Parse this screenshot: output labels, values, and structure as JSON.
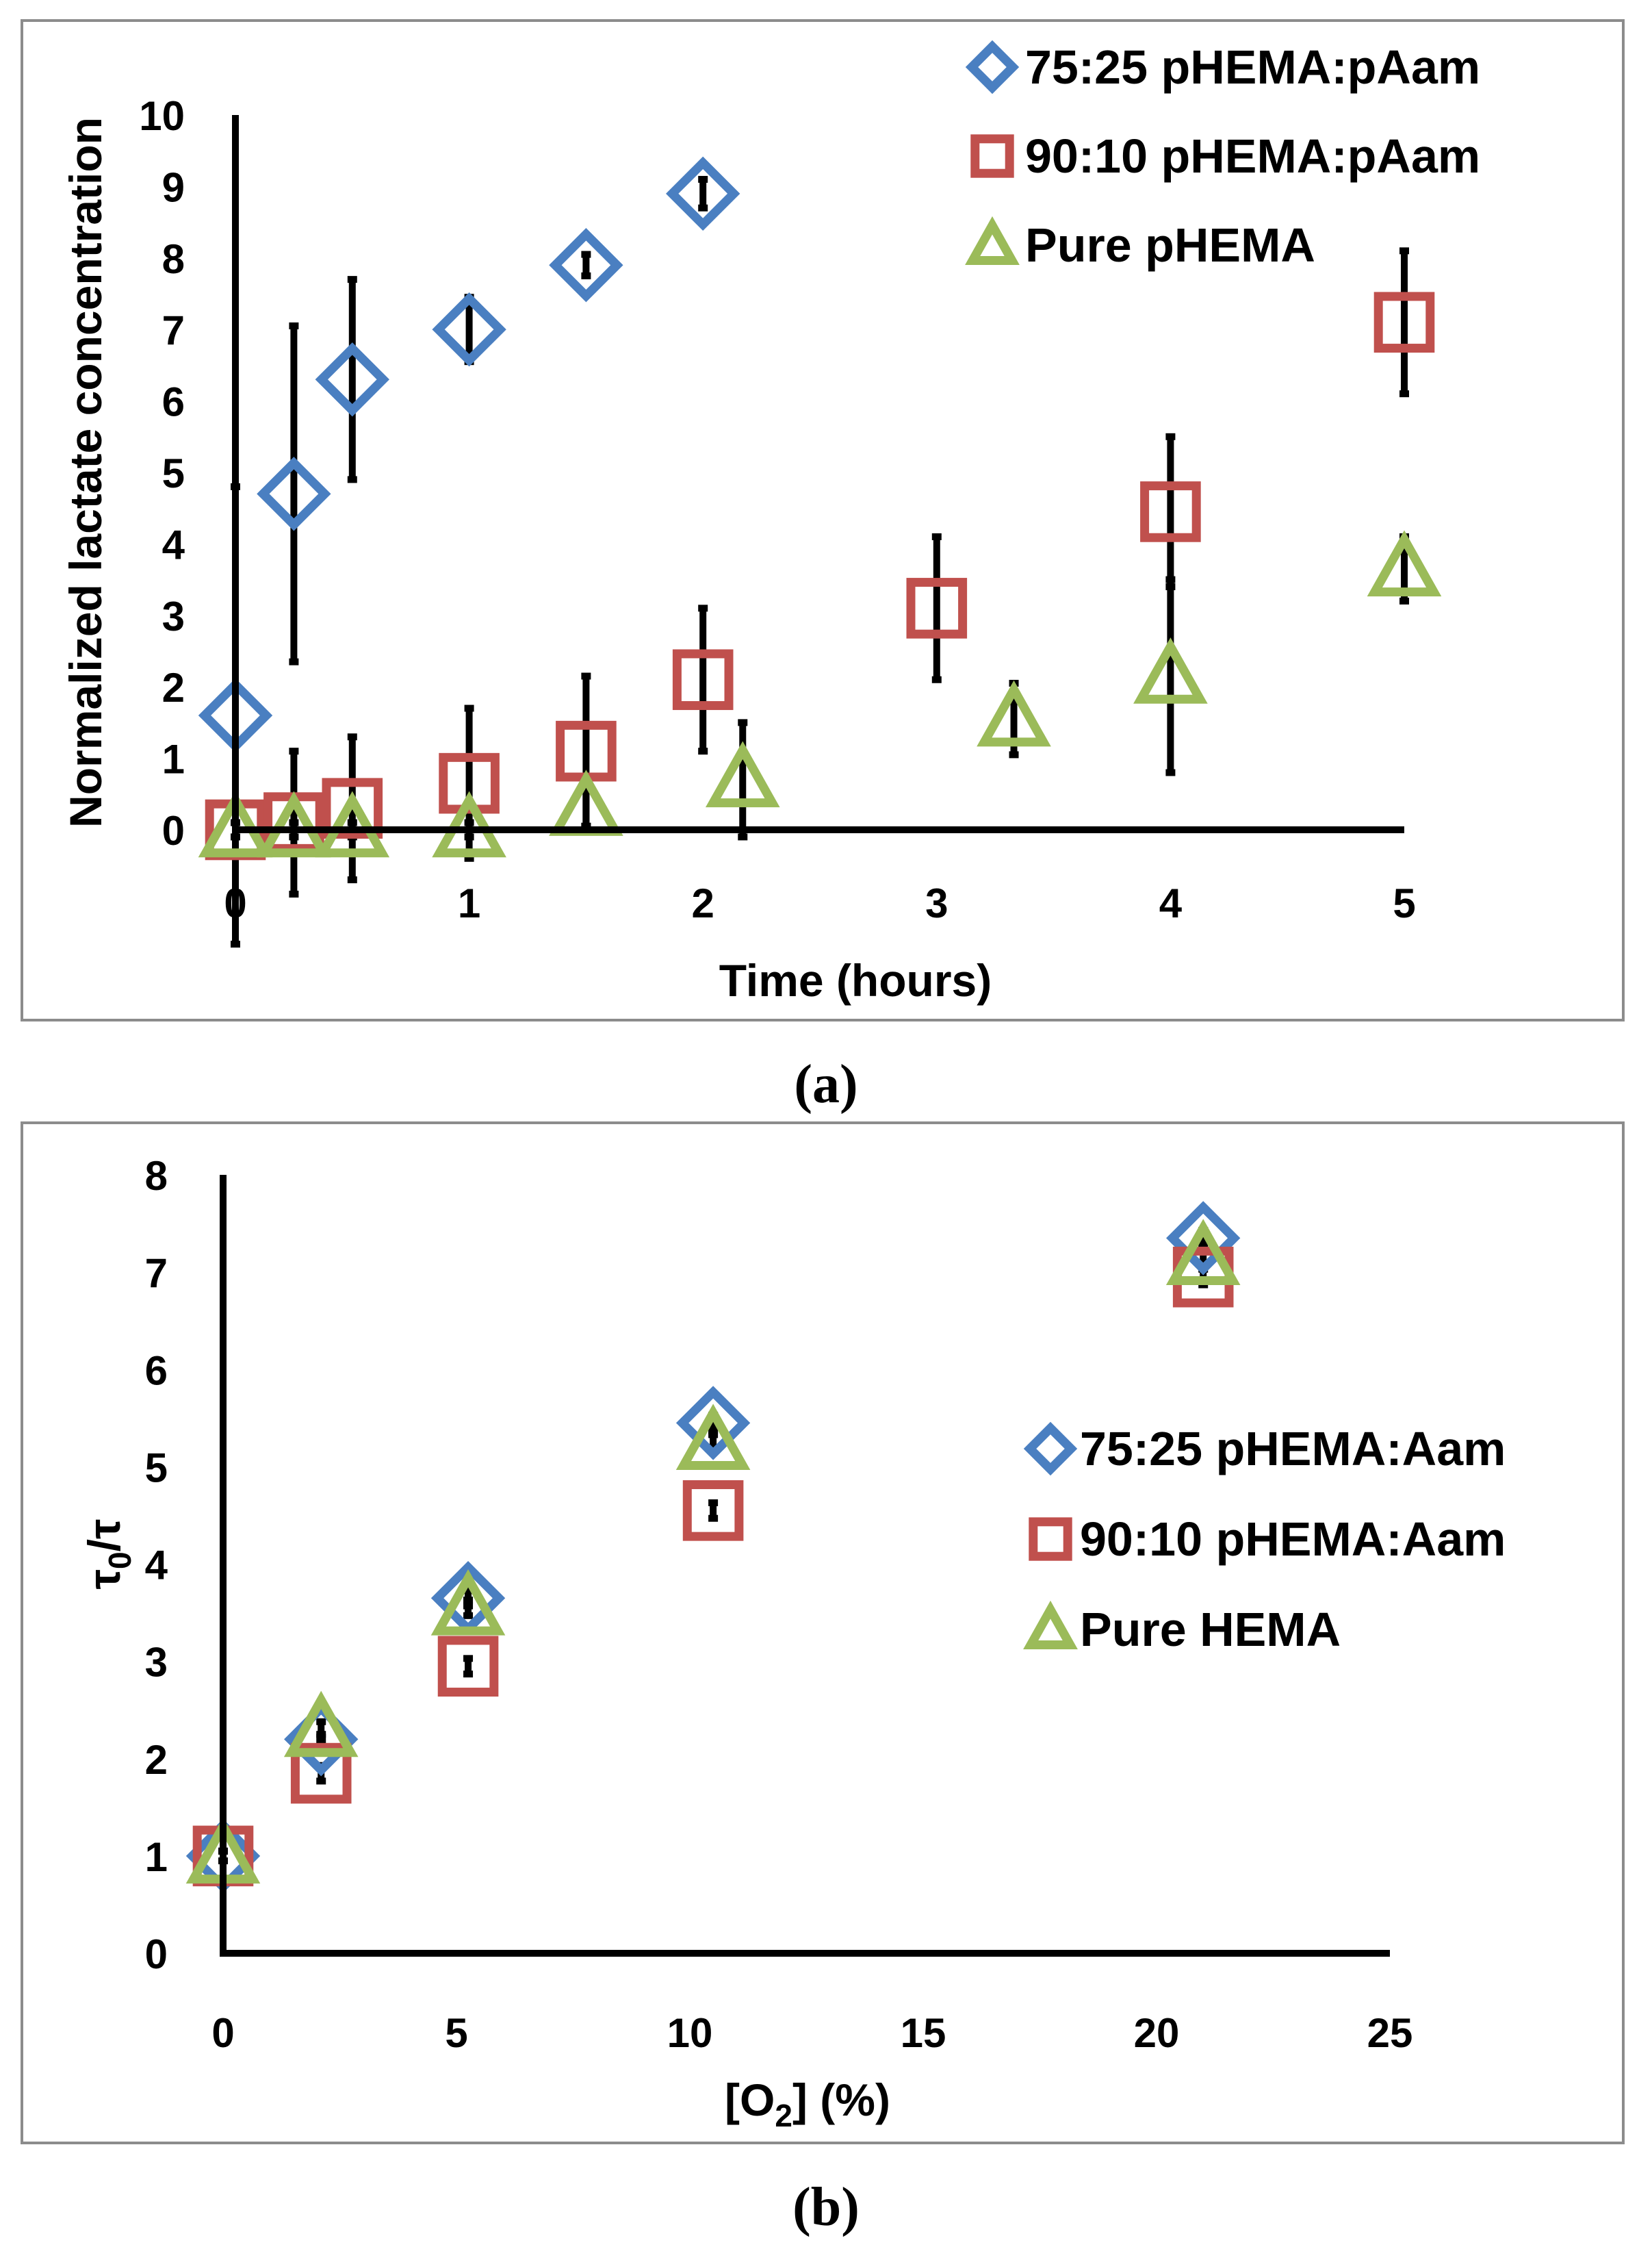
{
  "colors": {
    "blue": "#4a7fc1",
    "red": "#c0504d",
    "green": "#9bbb59",
    "axis": "#000000"
  },
  "chart_data": [
    {
      "type": "scatter",
      "panel_label": "a",
      "xlabel": "Time (hours)",
      "ylabel": "Normalized lactate concentration",
      "xlim": [
        0,
        5
      ],
      "ylim": [
        0,
        10
      ],
      "xticks": [
        "0",
        "1",
        "2",
        "3",
        "4",
        "5"
      ],
      "yticks": [
        "0",
        "1",
        "2",
        "3",
        "4",
        "5",
        "6",
        "7",
        "8",
        "9",
        "10"
      ],
      "legend_position": "top-right",
      "series": [
        {
          "name": "75:25 pHEMA:pAam",
          "marker": "diamond",
          "color": "#4a7fc1",
          "x": [
            0,
            0.25,
            0.5,
            1,
            1.5,
            2
          ],
          "y": [
            1.6,
            4.7,
            6.3,
            7.0,
            7.9,
            8.9
          ],
          "err": [
            3.2,
            2.35,
            1.4,
            0.45,
            0.15,
            0.2
          ]
        },
        {
          "name": "90:10 pHEMA:pAam",
          "marker": "square",
          "color": "#c0504d",
          "x": [
            0,
            0.25,
            0.5,
            1,
            1.5,
            2,
            3,
            4,
            5
          ],
          "y": [
            0.0,
            0.1,
            0.3,
            0.65,
            1.1,
            2.1,
            3.1,
            4.45,
            7.1
          ],
          "err": [
            0.1,
            1.0,
            1.0,
            1.05,
            1.05,
            1.0,
            1.0,
            1.05,
            1.0
          ]
        },
        {
          "name": "Pure pHEMA",
          "marker": "triangle",
          "color": "#9bbb59",
          "x": [
            0,
            0.25,
            0.5,
            1,
            1.5,
            2.17,
            3.33,
            4,
            5
          ],
          "y": [
            0.0,
            0.0,
            0.0,
            0.0,
            0.3,
            0.7,
            1.55,
            2.15,
            3.65
          ],
          "err": [
            0.1,
            0.1,
            0.1,
            0.1,
            0.25,
            0.8,
            0.5,
            1.35,
            0.45
          ]
        }
      ]
    },
    {
      "type": "scatter",
      "panel_label": "b",
      "xlabel": "[O",
      "xlabel_sub": "2",
      "xlabel_tail": "] (%)",
      "ylabel": "τ",
      "ylabel_sub": "0",
      "ylabel_tail": "/τ",
      "xlim": [
        0,
        25
      ],
      "ylim": [
        0,
        8
      ],
      "xticks": [
        "0",
        "5",
        "10",
        "15",
        "20",
        "25"
      ],
      "yticks": [
        "0",
        "1",
        "2",
        "3",
        "4",
        "5",
        "6",
        "7",
        "8"
      ],
      "legend_position": "center-right",
      "series": [
        {
          "name": "75:25 pHEMA:Aam",
          "marker": "diamond",
          "color": "#4a7fc1",
          "x": [
            0,
            2.1,
            5.25,
            10.5,
            21
          ],
          "y": [
            1.0,
            2.2,
            3.65,
            5.45,
            7.35
          ],
          "err": [
            0.05,
            0.05,
            0.08,
            0.08,
            0.08
          ]
        },
        {
          "name": "90:10 pHEMA:Aam",
          "marker": "square",
          "color": "#c0504d",
          "x": [
            0,
            2.1,
            5.25,
            10.5,
            21
          ],
          "y": [
            1.0,
            1.85,
            2.95,
            4.55,
            6.95
          ],
          "err": [
            0.05,
            0.08,
            0.08,
            0.08,
            0.08
          ]
        },
        {
          "name": "Pure HEMA",
          "marker": "triangle",
          "color": "#9bbb59",
          "x": [
            0,
            2.1,
            5.25,
            10.5,
            21
          ],
          "y": [
            1.0,
            2.3,
            3.55,
            5.25,
            7.15
          ],
          "err": [
            0.05,
            0.08,
            0.08,
            0.08,
            0.08
          ]
        }
      ]
    }
  ]
}
